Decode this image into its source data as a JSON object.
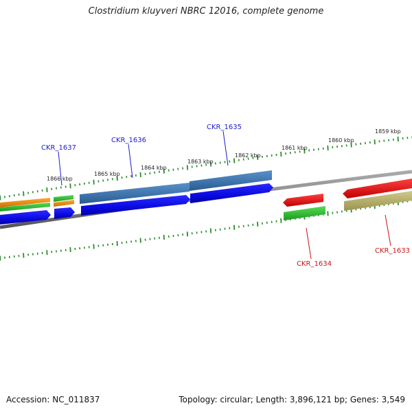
{
  "header": {
    "title": "Clostridium kluyveri NBRC 12016, complete genome"
  },
  "footer": {
    "accession": "Accession: NC_011837",
    "summary": "Topology: circular; Length: 3,896,121 bp; Genes: 3,549"
  },
  "colors": {
    "backbone": "#888888",
    "tick": "#2a8a2a",
    "forward_label": "#1a1acc",
    "reverse_label": "#cc1111"
  },
  "ticks": [
    {
      "label": "1866 kbp"
    },
    {
      "label": "1865 kbp"
    },
    {
      "label": "1864 kbp"
    },
    {
      "label": "1863 kbp"
    },
    {
      "label": "1862 kbp"
    },
    {
      "label": "1861 kbp"
    },
    {
      "label": "1860 kbp"
    },
    {
      "label": "1859 kbp"
    }
  ],
  "genes": [
    {
      "label": "CKR_1637",
      "strand": "forward"
    },
    {
      "label": "CKR_1636",
      "strand": "forward"
    },
    {
      "label": "CKR_1635",
      "strand": "forward"
    },
    {
      "label": "CKR_1634",
      "strand": "reverse"
    },
    {
      "label": "CKR_1633",
      "strand": "reverse"
    }
  ],
  "tracks": [
    {
      "name": "cds-forward",
      "color": "#1010ee"
    },
    {
      "name": "cog-blue",
      "color": "#4a7fb5"
    },
    {
      "name": "green",
      "color": "#33bb33"
    },
    {
      "name": "orange",
      "color": "#f08a10"
    },
    {
      "name": "red",
      "color": "#ee1111"
    },
    {
      "name": "olive",
      "color": "#b5ae6a"
    }
  ]
}
